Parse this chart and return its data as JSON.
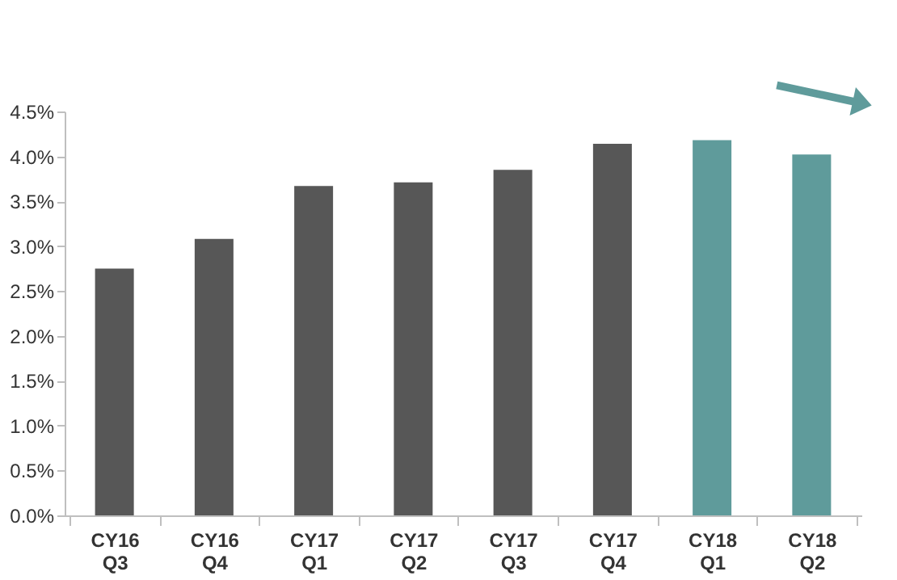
{
  "chart_data": {
    "type": "bar",
    "categories": [
      "CY16 Q3",
      "CY16 Q4",
      "CY17 Q1",
      "CY17 Q2",
      "CY17 Q3",
      "CY17 Q4",
      "CY18 Q1",
      "CY18 Q2"
    ],
    "values": [
      2.75,
      3.08,
      3.67,
      3.71,
      3.85,
      4.14,
      4.18,
      4.02
    ],
    "colors": [
      "#575757",
      "#575757",
      "#575757",
      "#575757",
      "#575757",
      "#575757",
      "#5f9b9b",
      "#5f9b9b"
    ],
    "ylim": [
      0,
      4.5
    ],
    "yticks": [
      {
        "value": 0,
        "label": "0.0%"
      },
      {
        "value": 0.5,
        "label": "0.5%"
      },
      {
        "value": 1,
        "label": "1.0%"
      },
      {
        "value": 1.5,
        "label": "1.5%"
      },
      {
        "value": 2,
        "label": "2.0%"
      },
      {
        "value": 2.5,
        "label": "2.5%"
      },
      {
        "value": 3,
        "label": "3.0%"
      },
      {
        "value": 3.5,
        "label": "3.5%"
      },
      {
        "value": 4,
        "label": "4.0%"
      },
      {
        "value": 4.5,
        "label": "4.5%"
      }
    ],
    "grid": false
  }
}
